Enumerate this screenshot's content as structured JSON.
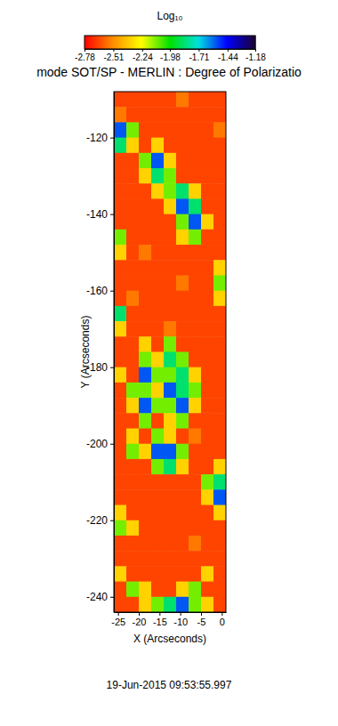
{
  "chart_data": {
    "type": "heatmap",
    "title": "mode SOT/SP - MERLIN : Degree of Polarizatio",
    "xlabel": "X (Arcseconds)",
    "ylabel": "Y (Arcseconds)",
    "date": "19-Jun-2015 09:53:55.997",
    "xlim": [
      -26,
      1
    ],
    "ylim": [
      -244,
      -108
    ],
    "xticks": [
      -25,
      -20,
      -15,
      -10,
      -5,
      0
    ],
    "yticks": [
      -240,
      -220,
      -200,
      -180,
      -160,
      -140,
      -120
    ],
    "x": [
      -24.5,
      -21.5,
      -18.5,
      -15.5,
      -12.5,
      -9.5,
      -6.5,
      -3.5,
      -0.5
    ],
    "y": [
      -110,
      -114,
      -118,
      -122,
      -126,
      -130,
      -134,
      -138,
      -142,
      -146,
      -150,
      -154,
      -158,
      -162,
      -166,
      -170,
      -174,
      -178,
      -182,
      -186,
      -190,
      -194,
      -198,
      -202,
      -206,
      -210,
      -214,
      -218,
      -222,
      -226,
      -230,
      -234,
      -238,
      -242
    ],
    "z": [
      [
        -2.65,
        -2.65,
        -2.65,
        -2.65,
        -2.65,
        -2.55,
        -2.65,
        -2.65,
        -2.65
      ],
      [
        -2.55,
        -2.65,
        -2.65,
        -2.65,
        -2.65,
        -2.65,
        -2.65,
        -2.65,
        -2.65
      ],
      [
        -1.55,
        -2.1,
        -2.65,
        -2.65,
        -2.65,
        -2.65,
        -2.65,
        -2.65,
        -2.55
      ],
      [
        -1.85,
        -2.35,
        -2.65,
        -2.35,
        -2.65,
        -2.65,
        -2.65,
        -2.65,
        -2.65
      ],
      [
        -2.65,
        -2.65,
        -2.1,
        -1.55,
        -2.35,
        -2.65,
        -2.65,
        -2.65,
        -2.65
      ],
      [
        -2.65,
        -2.65,
        -2.35,
        -1.85,
        -2.1,
        -2.65,
        -2.65,
        -2.65,
        -2.65
      ],
      [
        -2.65,
        -2.65,
        -2.65,
        -2.35,
        -2.1,
        -1.85,
        -2.35,
        -2.65,
        -2.65
      ],
      [
        -2.65,
        -2.65,
        -2.65,
        -2.65,
        -2.35,
        -1.55,
        -1.85,
        -2.65,
        -2.65
      ],
      [
        -2.65,
        -2.65,
        -2.65,
        -2.65,
        -2.65,
        -2.1,
        -1.55,
        -2.35,
        -2.65
      ],
      [
        -2.1,
        -2.65,
        -2.65,
        -2.65,
        -2.65,
        -2.35,
        -2.1,
        -2.65,
        -2.65
      ],
      [
        -2.35,
        -2.65,
        -2.55,
        -2.65,
        -2.65,
        -2.65,
        -2.65,
        -2.65,
        -2.65
      ],
      [
        -2.65,
        -2.65,
        -2.65,
        -2.65,
        -2.65,
        -2.65,
        -2.65,
        -2.65,
        -2.35
      ],
      [
        -2.65,
        -2.65,
        -2.65,
        -2.65,
        -2.65,
        -2.55,
        -2.65,
        -2.65,
        -2.1
      ],
      [
        -2.65,
        -2.55,
        -2.65,
        -2.65,
        -2.65,
        -2.65,
        -2.65,
        -2.65,
        -2.35
      ],
      [
        -1.85,
        -2.65,
        -2.65,
        -2.65,
        -2.65,
        -2.65,
        -2.65,
        -2.65,
        -2.65
      ],
      [
        -2.35,
        -2.65,
        -2.65,
        -2.65,
        -2.55,
        -2.65,
        -2.65,
        -2.65,
        -2.65
      ],
      [
        -2.65,
        -2.65,
        -2.35,
        -2.65,
        -2.1,
        -2.65,
        -2.65,
        -2.65,
        -2.65
      ],
      [
        -2.65,
        -2.65,
        -2.1,
        -2.35,
        -1.85,
        -2.1,
        -2.65,
        -2.65,
        -2.65
      ],
      [
        -2.35,
        -2.65,
        -1.55,
        -2.1,
        -2.1,
        -1.85,
        -2.35,
        -2.65,
        -2.65
      ],
      [
        -2.65,
        -2.1,
        -2.1,
        -2.35,
        -1.55,
        -1.85,
        -2.1,
        -2.65,
        -2.65
      ],
      [
        -2.65,
        -2.35,
        -1.55,
        -2.1,
        -2.1,
        -1.55,
        -2.35,
        -2.65,
        -2.65
      ],
      [
        -2.65,
        -2.65,
        -2.1,
        -2.65,
        -2.35,
        -2.1,
        -2.65,
        -2.65,
        -2.65
      ],
      [
        -2.65,
        -2.35,
        -2.65,
        -2.1,
        -2.35,
        -2.65,
        -2.55,
        -2.65,
        -2.65
      ],
      [
        -2.65,
        -2.1,
        -2.35,
        -1.55,
        -1.55,
        -2.1,
        -2.65,
        -2.65,
        -2.65
      ],
      [
        -2.65,
        -2.65,
        -2.65,
        -2.1,
        -1.85,
        -2.35,
        -2.65,
        -2.65,
        -2.35
      ],
      [
        -2.65,
        -2.65,
        -2.65,
        -2.65,
        -2.65,
        -2.65,
        -2.65,
        -2.1,
        -1.85
      ],
      [
        -2.65,
        -2.65,
        -2.65,
        -2.65,
        -2.65,
        -2.65,
        -2.65,
        -2.35,
        -1.55
      ],
      [
        -2.35,
        -2.65,
        -2.65,
        -2.65,
        -2.65,
        -2.65,
        -2.65,
        -2.65,
        -2.35
      ],
      [
        -2.1,
        -2.35,
        -2.65,
        -2.65,
        -2.65,
        -2.65,
        -2.65,
        -2.65,
        -2.65
      ],
      [
        -2.65,
        -2.65,
        -2.65,
        -2.65,
        -2.65,
        -2.65,
        -2.55,
        -2.65,
        -2.65
      ],
      [
        -2.65,
        -2.65,
        -2.65,
        -2.65,
        -2.65,
        -2.65,
        -2.65,
        -2.65,
        -2.65
      ],
      [
        -2.35,
        -2.65,
        -2.65,
        -2.65,
        -2.65,
        -2.65,
        -2.65,
        -2.35,
        -2.65
      ],
      [
        -2.65,
        -2.1,
        -2.35,
        -2.65,
        -2.65,
        -2.35,
        -2.1,
        -2.65,
        -2.65
      ],
      [
        -2.65,
        -2.65,
        -2.35,
        -2.1,
        -1.85,
        -1.55,
        -2.1,
        -2.35,
        -2.65
      ]
    ],
    "colorbar": {
      "label": "Log₁₀",
      "range": [
        -2.78,
        -1.18
      ],
      "ticks": [
        -2.78,
        -2.51,
        -2.24,
        -1.98,
        -1.71,
        -1.44,
        -1.18
      ]
    }
  }
}
